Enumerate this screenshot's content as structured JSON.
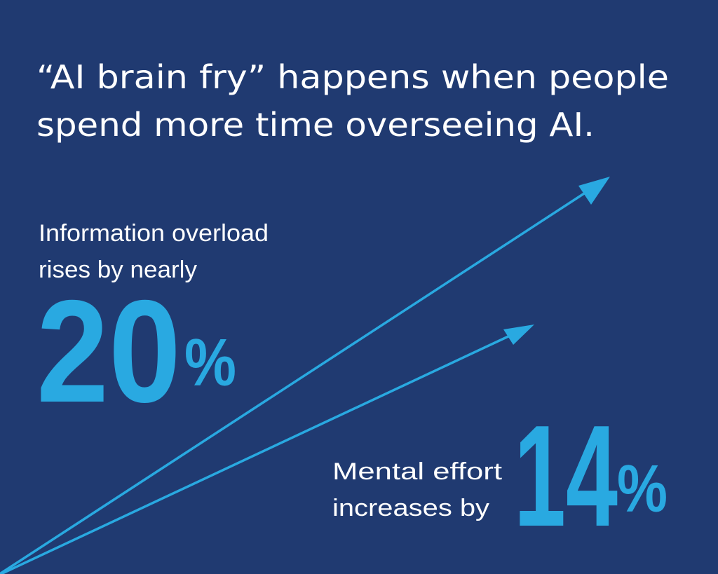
{
  "title": {
    "lines": [
      "“AI brain fry” happens when people",
      "spend more time overseeing AI."
    ]
  },
  "stats": [
    {
      "label_lines": [
        "Information overload",
        "rises by nearly"
      ],
      "value": 20,
      "unit": "%"
    },
    {
      "label_lines": [
        "Mental effort",
        "increases by"
      ],
      "value": 14,
      "unit": "%"
    }
  ]
}
